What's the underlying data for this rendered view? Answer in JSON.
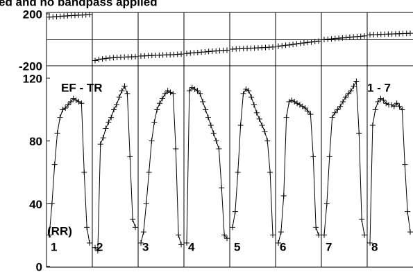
{
  "chart_data": [
    {
      "type": "line",
      "title": "ed and no bandpass applied",
      "ylim": [
        -200,
        200
      ],
      "yticks": [
        200,
        -200
      ],
      "color": "#000000",
      "series": [
        {
          "values": [
            175,
            177,
            179,
            181,
            183,
            185,
            187,
            188,
            190,
            191,
            193,
            195
          ]
        },
        {
          "values": [
            -160,
            -152,
            -147,
            -143,
            -140,
            -138,
            -136,
            -134,
            -133,
            -132,
            -131,
            -130
          ]
        },
        {
          "values": [
            -125,
            -124,
            -122,
            -121,
            -120,
            -119,
            -117,
            -116,
            -115,
            -114,
            -112,
            -110
          ]
        },
        {
          "values": [
            -105,
            -102,
            -100,
            -98,
            -95,
            -93,
            -90,
            -88,
            -86,
            -84,
            -82,
            -80
          ]
        },
        {
          "values": [
            -72,
            -70,
            -69,
            -67,
            -66,
            -65,
            -63,
            -62,
            -60,
            -59,
            -57,
            -55
          ]
        },
        {
          "values": [
            -50,
            -46,
            -42,
            -39,
            -35,
            -31,
            -27,
            -24,
            -20,
            -17,
            -13,
            -10
          ]
        },
        {
          "values": [
            2,
            5,
            7,
            10,
            12,
            15,
            17,
            20,
            22,
            25,
            27,
            30
          ]
        },
        {
          "values": [
            38,
            40,
            41,
            42,
            43,
            44,
            45,
            46,
            47,
            48,
            49,
            50
          ]
        }
      ]
    },
    {
      "type": "line",
      "annotations": [
        "EF - TR",
        "1 - 7",
        "(RR)"
      ],
      "ylim": [
        0,
        120
      ],
      "yticks": [
        0,
        40,
        80,
        120
      ],
      "color": "#000000",
      "series": [
        {
          "name": "1",
          "values": [
            20,
            40,
            65,
            85,
            95,
            100,
            101,
            103,
            105,
            107,
            106,
            105,
            104,
            60,
            25,
            15
          ]
        },
        {
          "name": "2",
          "values": [
            12,
            10,
            78,
            82,
            88,
            92,
            95,
            100,
            103,
            108,
            112,
            115,
            110,
            70,
            30,
            25
          ]
        },
        {
          "name": "3",
          "values": [
            15,
            22,
            40,
            60,
            80,
            92,
            100,
            104,
            107,
            110,
            112,
            111,
            110,
            75,
            20,
            14
          ]
        },
        {
          "name": "4",
          "values": [
            15,
            112,
            114,
            113,
            112,
            110,
            105,
            100,
            95,
            90,
            85,
            80,
            75,
            50,
            20,
            18
          ]
        },
        {
          "name": "5",
          "values": [
            25,
            35,
            60,
            90,
            110,
            113,
            112,
            108,
            103,
            98,
            94,
            90,
            86,
            80,
            60,
            20
          ]
        },
        {
          "name": "6",
          "values": [
            15,
            22,
            45,
            95,
            105,
            106,
            105,
            104,
            103,
            102,
            101,
            99,
            97,
            70,
            25,
            20
          ]
        },
        {
          "name": "7",
          "values": [
            20,
            40,
            70,
            95,
            98,
            100,
            102,
            105,
            108,
            110,
            112,
            115,
            118,
            85,
            30,
            20
          ]
        },
        {
          "name": "8",
          "values": [
            15,
            90,
            100,
            105,
            107,
            106,
            104,
            103,
            103,
            102,
            104,
            102,
            100,
            65,
            35,
            22
          ]
        }
      ]
    }
  ]
}
